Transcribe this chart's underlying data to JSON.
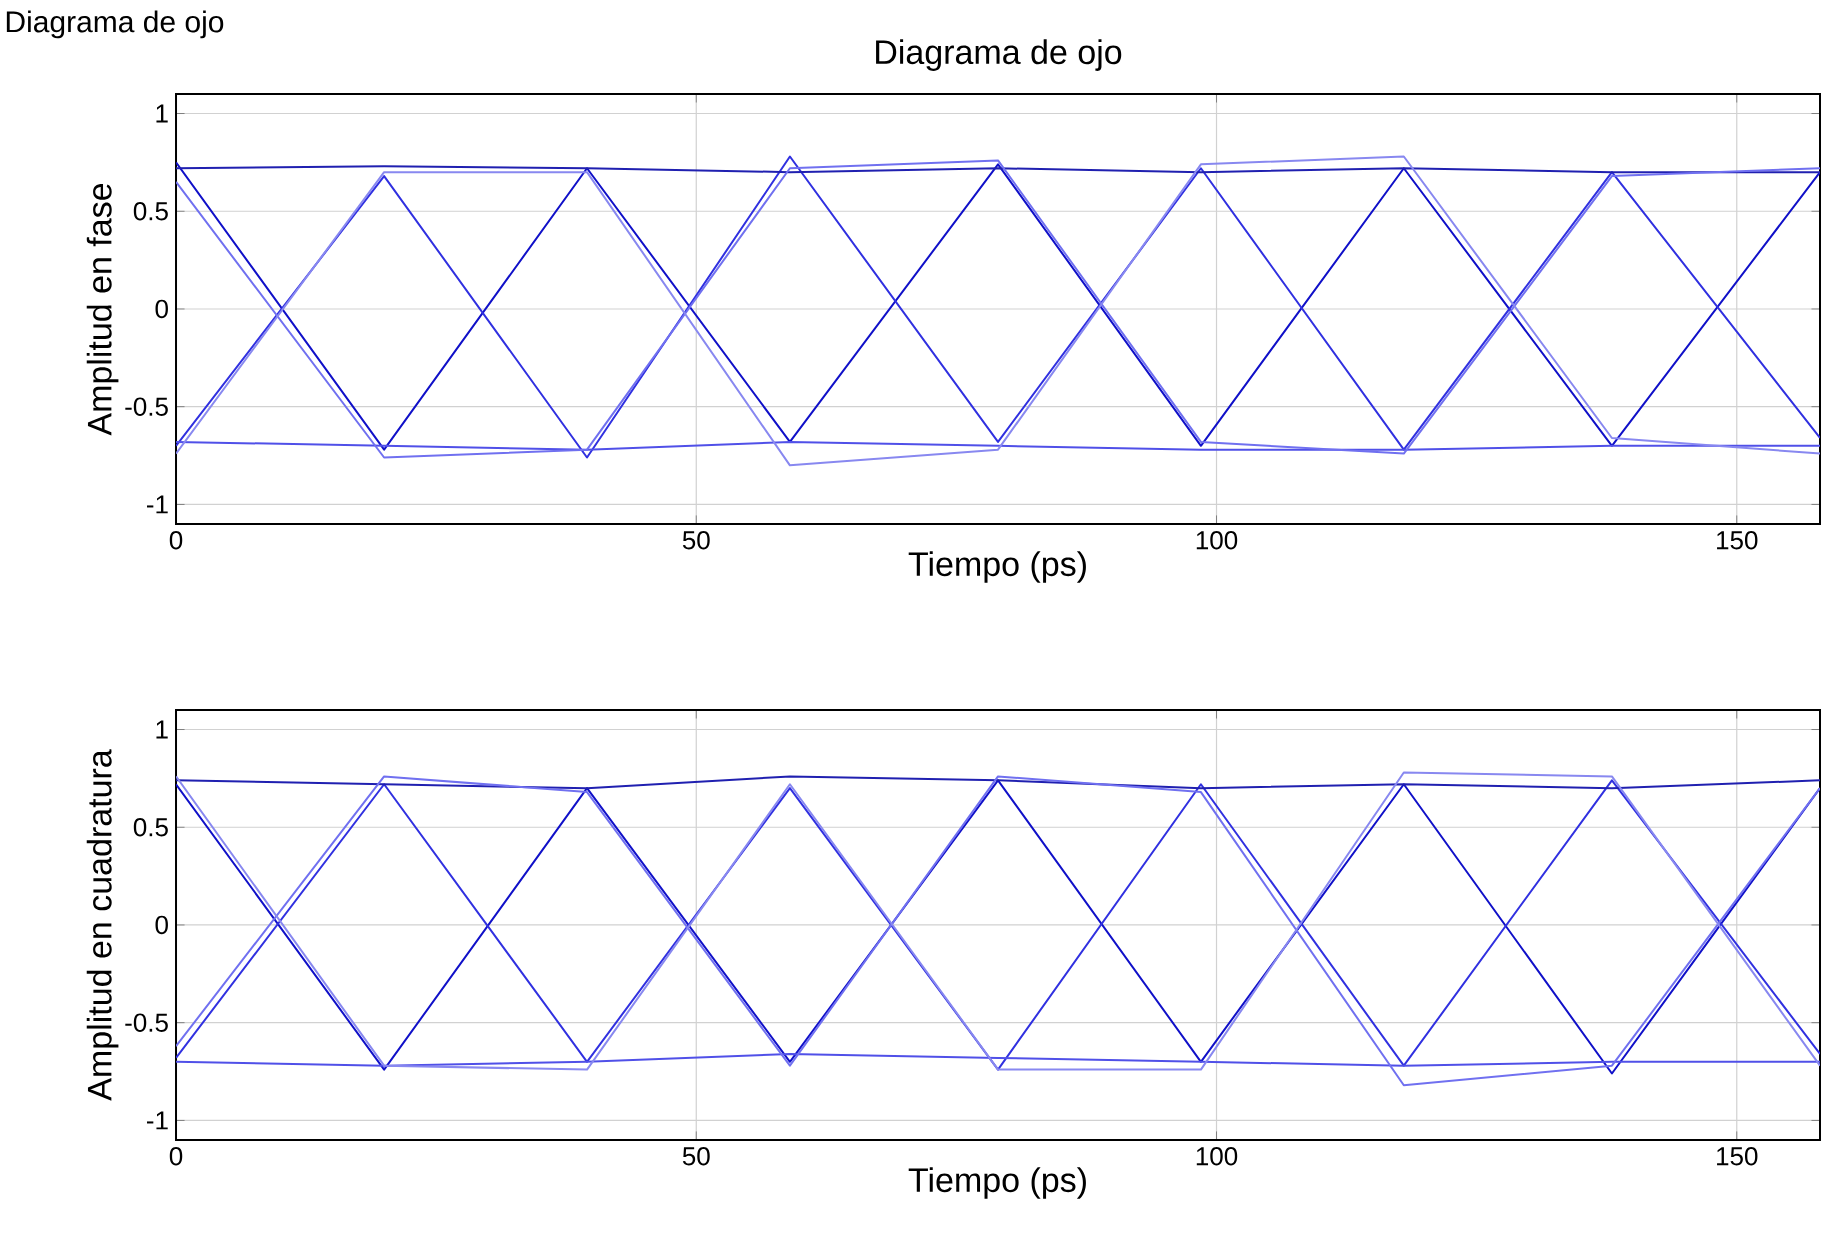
{
  "chart_data": [
    {
      "type": "line",
      "title": "Diagrama de ojo",
      "xlabel": "Tiempo (ps)",
      "ylabel": "Amplitud en fase",
      "annotations": [
        "Diagrama de ojo"
      ],
      "xlim": [
        0,
        158
      ],
      "ylim": [
        -1.1,
        1.1
      ],
      "xticks": [
        0,
        50,
        100,
        150
      ],
      "yticks": [
        -1,
        -0.5,
        0,
        0.5,
        1
      ],
      "grid": true,
      "marker": "none",
      "line_style": "solid",
      "x": [
        0,
        20,
        39.5,
        59,
        79,
        98.5,
        118,
        138,
        158
      ],
      "series": [
        {
          "color": "#1010c8",
          "values": [
            0.75,
            -0.72,
            0.72,
            -0.68,
            0.74,
            -0.7,
            0.72,
            -0.7,
            0.7
          ]
        },
        {
          "color": "#3030e0",
          "values": [
            -0.7,
            0.68,
            -0.76,
            0.78,
            -0.68,
            0.72,
            -0.72,
            0.7,
            -0.66
          ]
        },
        {
          "color": "#2020b0",
          "values": [
            0.72,
            0.73,
            0.72,
            0.7,
            0.72,
            0.7,
            0.72,
            0.7,
            0.7
          ]
        },
        {
          "color": "#5050e8",
          "values": [
            -0.68,
            -0.7,
            -0.72,
            -0.68,
            -0.7,
            -0.72,
            -0.72,
            -0.7,
            -0.7
          ]
        },
        {
          "color": "#7070f0",
          "values": [
            0.65,
            -0.76,
            -0.72,
            0.72,
            0.76,
            -0.68,
            -0.74,
            0.68,
            0.72
          ]
        },
        {
          "color": "#8888f0",
          "values": [
            -0.74,
            0.7,
            0.7,
            -0.8,
            -0.72,
            0.74,
            0.78,
            -0.66,
            -0.74
          ]
        }
      ]
    },
    {
      "type": "line",
      "xlabel": "Tiempo (ps)",
      "ylabel": "Amplitud en cuadratura",
      "xlim": [
        0,
        158
      ],
      "ylim": [
        -1.1,
        1.1
      ],
      "xticks": [
        0,
        50,
        100,
        150
      ],
      "yticks": [
        -1,
        -0.5,
        0,
        0.5,
        1
      ],
      "grid": true,
      "marker": "none",
      "line_style": "solid",
      "x": [
        0,
        20,
        39.5,
        59,
        79,
        98.5,
        118,
        138,
        158
      ],
      "series": [
        {
          "color": "#1010c8",
          "values": [
            0.72,
            -0.74,
            0.7,
            -0.7,
            0.74,
            -0.7,
            0.72,
            -0.76,
            0.7
          ]
        },
        {
          "color": "#3030e0",
          "values": [
            -0.68,
            0.72,
            -0.7,
            0.7,
            -0.74,
            0.72,
            -0.72,
            0.74,
            -0.66
          ]
        },
        {
          "color": "#2020b0",
          "values": [
            0.74,
            0.72,
            0.7,
            0.76,
            0.74,
            0.7,
            0.72,
            0.7,
            0.74
          ]
        },
        {
          "color": "#5050e8",
          "values": [
            -0.7,
            -0.72,
            -0.7,
            -0.66,
            -0.68,
            -0.7,
            -0.72,
            -0.7,
            -0.7
          ]
        },
        {
          "color": "#7070f0",
          "values": [
            -0.62,
            0.76,
            0.68,
            -0.72,
            0.76,
            0.68,
            -0.82,
            -0.72,
            0.7
          ]
        },
        {
          "color": "#8888f0",
          "values": [
            0.76,
            -0.72,
            -0.74,
            0.72,
            -0.74,
            -0.74,
            0.78,
            0.76,
            -0.72
          ]
        }
      ]
    }
  ]
}
